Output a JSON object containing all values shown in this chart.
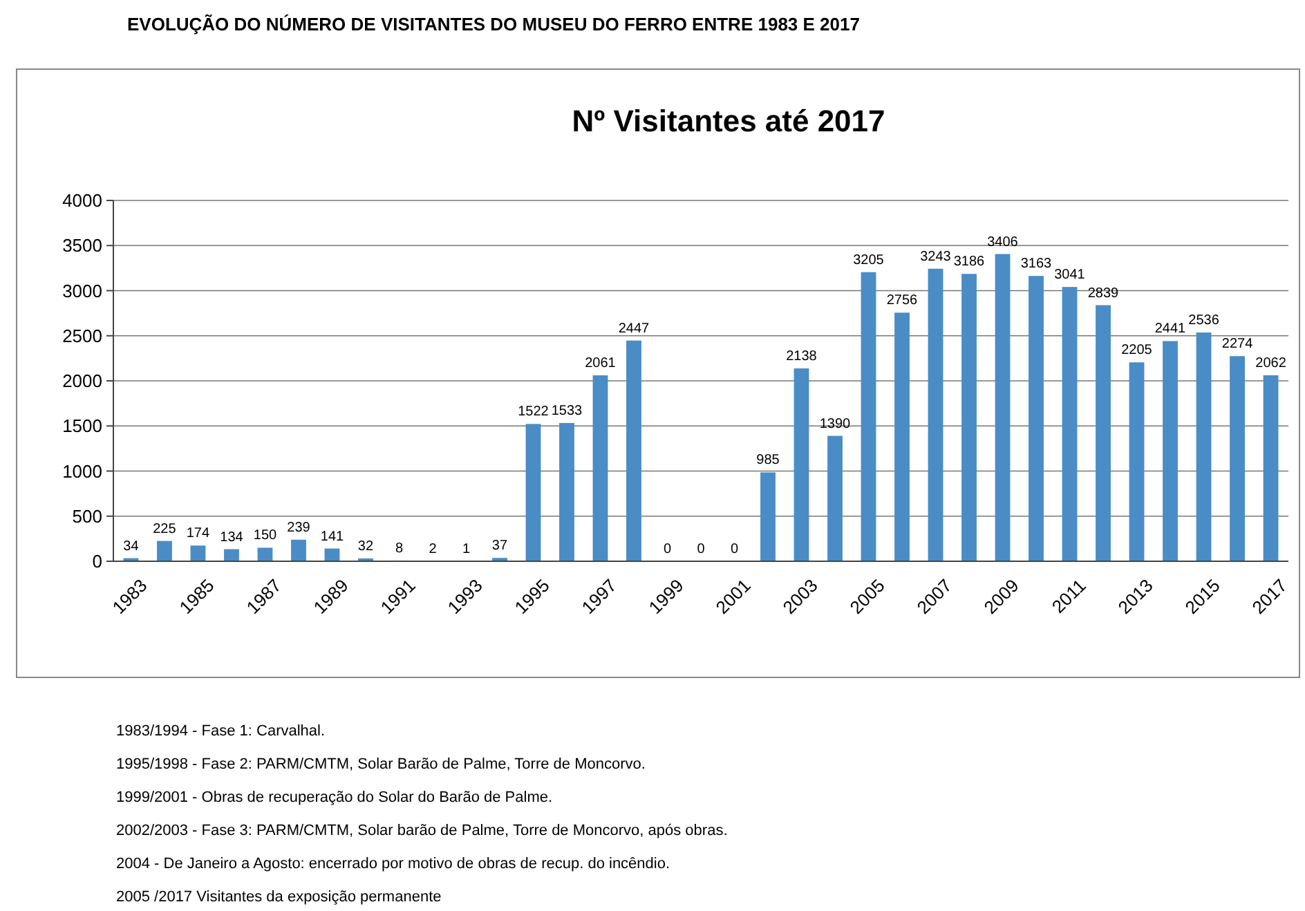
{
  "chart_data": {
    "type": "bar",
    "title": "EVOLUÇÃO DO NÚMERO DE VISITANTES DO MUSEU DO FERRO ENTRE 1983 E 2017",
    "subtitle": "Nº Visitantes até 2017",
    "categories": [
      "1983",
      null,
      "1985",
      null,
      "1987",
      null,
      "1989",
      null,
      "1991",
      null,
      "1993",
      null,
      "1995",
      null,
      "1997",
      null,
      "1999",
      null,
      "2001",
      null,
      "2003",
      null,
      "2005",
      null,
      "2007",
      null,
      "2009",
      null,
      "2011",
      null,
      "2013",
      null,
      "2015",
      null,
      "2017"
    ],
    "values": [
      34,
      225,
      174,
      134,
      150,
      239,
      141,
      32,
      8,
      2,
      1,
      37,
      1522,
      1533,
      2061,
      2447,
      0,
      0,
      0,
      985,
      2138,
      1390,
      3205,
      2756,
      3243,
      3186,
      3406,
      3163,
      3041,
      2839,
      2205,
      2441,
      2536,
      2274,
      2062
    ],
    "color": "#4a8cc6",
    "ylim": [
      0,
      4000
    ],
    "yticks": [
      0,
      500,
      1000,
      1500,
      2000,
      2500,
      3000,
      3500,
      4000
    ],
    "grid": "y",
    "data_labels": true,
    "annotations": [
      "1983/1994 - Fase 1: Carvalhal.",
      "1995/1998 - Fase 2: PARM/CMTM, Solar Barão de Palme, Torre de Moncorvo.",
      "1999/2001 - Obras de recuperação do Solar do Barão de Palme.",
      "2002/2003 - Fase 3: PARM/CMTM, Solar barão de Palme, Torre de Moncorvo, após obras.",
      "2004 - De Janeiro a Agosto: encerrado por motivo de obras de recup. do incêndio.",
      "2005 /2017 Visitantes da exposição permanente"
    ]
  }
}
